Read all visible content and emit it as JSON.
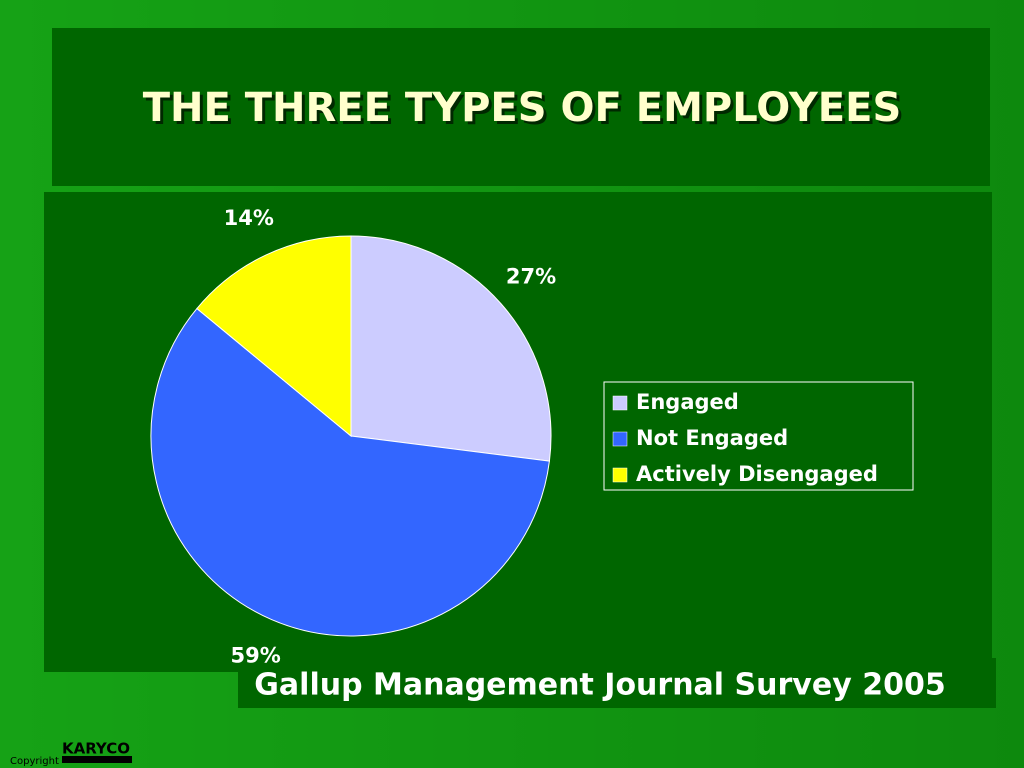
{
  "chart_data": {
    "type": "pie",
    "title": "THE THREE TYPES OF EMPLOYEES",
    "categories": [
      "Engaged",
      "Not Engaged",
      "Actively Disengaged"
    ],
    "values": [
      27,
      59,
      14
    ],
    "value_labels": [
      "27%",
      "59%",
      "14%"
    ],
    "colors": [
      "#ccccff",
      "#3366ff",
      "#ffff00"
    ],
    "legend": "right"
  },
  "caption": "Gallup Management Journal Survey 2005",
  "footer": {
    "copyright": "Copyright",
    "logo": "KARYCO"
  }
}
